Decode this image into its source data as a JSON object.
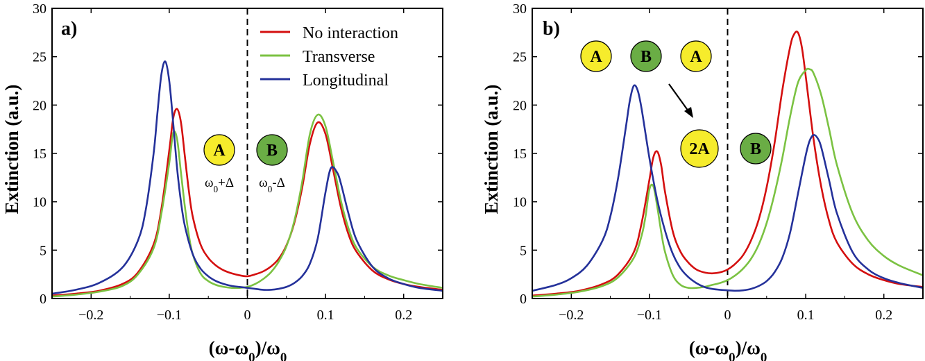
{
  "colors": {
    "no_interaction": "#d40f0f",
    "transverse": "#7bc242",
    "longitudinal": "#24319a",
    "atom_a": "#f6ec2c",
    "atom_b": "#6aad45"
  },
  "legend": {
    "no_interaction": "No interaction",
    "transverse": "Transverse",
    "longitudinal": "Longitudinal"
  },
  "chart_data": [
    {
      "type": "line",
      "panel_label": "a)",
      "xlabel": "(ω-ω0)/ω0",
      "ylabel": "Extinction (a.u.)",
      "xlim": [
        -0.25,
        0.25
      ],
      "ylim": [
        0,
        30
      ],
      "xticks": [
        -0.2,
        -0.1,
        0,
        0.1,
        0.2
      ],
      "xtick_labels": [
        "−0.2",
        "−0.1",
        "0",
        "0.1",
        "0.2"
      ],
      "yticks": [
        0,
        5,
        10,
        15,
        20,
        25,
        30
      ],
      "ytick_labels": [
        "0",
        "5",
        "10",
        "15",
        "20",
        "25",
        "30"
      ],
      "legend_position": "top-right",
      "dashed_vline_x": 0,
      "series": [
        {
          "name": "No interaction",
          "key": "no_interaction",
          "x": [
            -0.25,
            -0.22,
            -0.19,
            -0.16,
            -0.14,
            -0.12,
            -0.11,
            -0.1,
            -0.095,
            -0.09,
            -0.085,
            -0.08,
            -0.075,
            -0.07,
            -0.06,
            -0.05,
            -0.04,
            -0.03,
            -0.02,
            -0.01,
            0,
            0.01,
            0.02,
            0.03,
            0.04,
            0.05,
            0.06,
            0.07,
            0.08,
            0.09,
            0.1,
            0.11,
            0.12,
            0.13,
            0.14,
            0.16,
            0.18,
            0.2,
            0.22,
            0.25
          ],
          "y": [
            0.3,
            0.5,
            0.8,
            1.5,
            2.7,
            5.6,
            9.3,
            15.3,
            18.6,
            19.6,
            18.2,
            14.7,
            11.2,
            8.5,
            5.6,
            4.2,
            3.4,
            2.9,
            2.6,
            2.4,
            2.3,
            2.5,
            2.8,
            3.3,
            4.1,
            5.5,
            7.8,
            11.4,
            16.0,
            18.2,
            17.0,
            13.2,
            9.3,
            6.5,
            4.8,
            2.9,
            2.0,
            1.5,
            1.2,
            0.9
          ]
        },
        {
          "name": "Transverse",
          "key": "transverse",
          "x": [
            -0.25,
            -0.22,
            -0.19,
            -0.16,
            -0.14,
            -0.12,
            -0.11,
            -0.1,
            -0.095,
            -0.09,
            -0.085,
            -0.08,
            -0.075,
            -0.07,
            -0.06,
            -0.05,
            -0.04,
            -0.03,
            -0.02,
            -0.01,
            0,
            0.01,
            0.02,
            0.03,
            0.04,
            0.05,
            0.06,
            0.07,
            0.08,
            0.09,
            0.1,
            0.11,
            0.12,
            0.13,
            0.14,
            0.16,
            0.18,
            0.2,
            0.22,
            0.25
          ],
          "y": [
            0.2,
            0.4,
            0.7,
            1.3,
            2.5,
            5.2,
            8.8,
            14.0,
            17.1,
            16.5,
            13.0,
            9.5,
            6.6,
            4.6,
            2.6,
            1.8,
            1.4,
            1.2,
            1.1,
            1.1,
            1.2,
            1.5,
            2.0,
            2.7,
            3.8,
            5.4,
            8.0,
            12.0,
            17.0,
            19.0,
            17.8,
            14.0,
            10.0,
            7.1,
            5.2,
            3.3,
            2.4,
            1.9,
            1.5,
            1.1
          ]
        },
        {
          "name": "Longitudinal",
          "key": "longitudinal",
          "x": [
            -0.25,
            -0.22,
            -0.19,
            -0.16,
            -0.14,
            -0.13,
            -0.12,
            -0.115,
            -0.11,
            -0.105,
            -0.1,
            -0.095,
            -0.09,
            -0.085,
            -0.08,
            -0.07,
            -0.06,
            -0.05,
            -0.04,
            -0.03,
            -0.02,
            -0.01,
            0,
            0.01,
            0.02,
            0.03,
            0.04,
            0.05,
            0.06,
            0.07,
            0.08,
            0.09,
            0.1,
            0.107,
            0.115,
            0.12,
            0.13,
            0.14,
            0.16,
            0.18,
            0.2,
            0.22,
            0.25
          ],
          "y": [
            0.5,
            0.9,
            1.6,
            3.2,
            6.0,
            9.2,
            15.0,
            19.3,
            23.2,
            24.5,
            22.5,
            18.2,
            13.5,
            10.0,
            7.5,
            4.6,
            3.1,
            2.3,
            1.8,
            1.5,
            1.3,
            1.2,
            1.1,
            1.0,
            0.9,
            0.9,
            1.0,
            1.2,
            1.6,
            2.3,
            3.6,
            6.2,
            11.0,
            13.5,
            13.0,
            11.8,
            8.6,
            6.0,
            3.3,
            2.1,
            1.5,
            1.1,
            0.8
          ]
        }
      ],
      "annotations": {
        "circle_a": "A",
        "circle_b": "B",
        "label_a": "ω0+Δ",
        "label_b": "ω0-Δ"
      }
    },
    {
      "type": "line",
      "panel_label": "b)",
      "xlabel": "(ω-ω0)/ω0",
      "ylabel": "Extinction (a.u.)",
      "xlim": [
        -0.25,
        0.25
      ],
      "ylim": [
        0,
        30
      ],
      "xticks": [
        -0.2,
        -0.1,
        0,
        0.1,
        0.2
      ],
      "xtick_labels": [
        "−0.2",
        "−0.1",
        "0",
        "0.1",
        "0.2"
      ],
      "yticks": [
        0,
        5,
        10,
        15,
        20,
        25,
        30
      ],
      "ytick_labels": [
        "0",
        "5",
        "10",
        "15",
        "20",
        "25",
        "30"
      ],
      "dashed_vline_x": 0,
      "series": [
        {
          "name": "No interaction",
          "key": "no_interaction",
          "x": [
            -0.25,
            -0.22,
            -0.19,
            -0.16,
            -0.14,
            -0.12,
            -0.11,
            -0.1,
            -0.095,
            -0.09,
            -0.085,
            -0.08,
            -0.07,
            -0.06,
            -0.05,
            -0.04,
            -0.03,
            -0.02,
            -0.01,
            0,
            0.01,
            0.02,
            0.03,
            0.04,
            0.05,
            0.06,
            0.07,
            0.08,
            0.085,
            0.09,
            0.095,
            0.1,
            0.11,
            0.12,
            0.13,
            0.14,
            0.16,
            0.18,
            0.2,
            0.22,
            0.25
          ],
          "y": [
            0.3,
            0.5,
            0.8,
            1.5,
            2.5,
            4.8,
            7.8,
            12.3,
            14.6,
            15.2,
            13.8,
            11.0,
            6.9,
            4.8,
            3.7,
            3.0,
            2.7,
            2.6,
            2.7,
            3.0,
            3.6,
            4.5,
            6.0,
            8.2,
            11.5,
            16.0,
            21.5,
            26.0,
            27.3,
            27.5,
            26.0,
            23.0,
            16.5,
            11.5,
            8.0,
            5.8,
            3.6,
            2.5,
            1.9,
            1.5,
            1.2
          ]
        },
        {
          "name": "Transverse",
          "key": "transverse",
          "x": [
            -0.25,
            -0.22,
            -0.19,
            -0.16,
            -0.14,
            -0.12,
            -0.11,
            -0.105,
            -0.1,
            -0.095,
            -0.09,
            -0.085,
            -0.08,
            -0.07,
            -0.06,
            -0.05,
            -0.04,
            -0.03,
            -0.02,
            -0.01,
            0,
            0.01,
            0.02,
            0.03,
            0.04,
            0.05,
            0.06,
            0.07,
            0.08,
            0.09,
            0.1,
            0.105,
            0.11,
            0.12,
            0.13,
            0.14,
            0.16,
            0.18,
            0.2,
            0.22,
            0.25
          ],
          "y": [
            0.2,
            0.4,
            0.7,
            1.3,
            2.2,
            4.2,
            6.5,
            8.5,
            11.3,
            11.6,
            9.5,
            6.9,
            4.8,
            2.4,
            1.4,
            1.1,
            1.1,
            1.2,
            1.4,
            1.6,
            1.9,
            2.4,
            3.1,
            4.1,
            5.6,
            7.8,
            10.8,
            14.5,
            18.8,
            22.3,
            23.6,
            23.7,
            23.3,
            21.0,
            17.5,
            13.8,
            8.8,
            6.0,
            4.4,
            3.4,
            2.4
          ]
        },
        {
          "name": "Longitudinal",
          "key": "longitudinal",
          "x": [
            -0.25,
            -0.22,
            -0.2,
            -0.18,
            -0.16,
            -0.15,
            -0.14,
            -0.13,
            -0.125,
            -0.12,
            -0.115,
            -0.11,
            -0.1,
            -0.09,
            -0.08,
            -0.07,
            -0.06,
            -0.05,
            -0.04,
            -0.03,
            -0.02,
            -0.01,
            0,
            0.01,
            0.02,
            0.03,
            0.04,
            0.05,
            0.06,
            0.07,
            0.08,
            0.09,
            0.1,
            0.105,
            0.11,
            0.115,
            0.12,
            0.13,
            0.14,
            0.16,
            0.18,
            0.2,
            0.22,
            0.25
          ],
          "y": [
            0.8,
            1.4,
            2.1,
            3.4,
            6.0,
            8.5,
            12.5,
            17.8,
            20.5,
            22.0,
            21.5,
            19.6,
            14.5,
            10.2,
            7.0,
            4.6,
            3.1,
            2.2,
            1.6,
            1.2,
            1.0,
            0.9,
            0.85,
            0.8,
            0.85,
            1.0,
            1.3,
            1.8,
            2.7,
            4.2,
            6.8,
            10.8,
            14.8,
            16.3,
            16.9,
            16.6,
            15.6,
            12.2,
            8.8,
            4.8,
            3.0,
            2.1,
            1.6,
            1.1
          ]
        }
      ],
      "annotations": {
        "top_circles": [
          "A",
          "B",
          "A"
        ],
        "bottom_circle_2a": "2A",
        "bottom_circle_b": "B"
      }
    }
  ]
}
